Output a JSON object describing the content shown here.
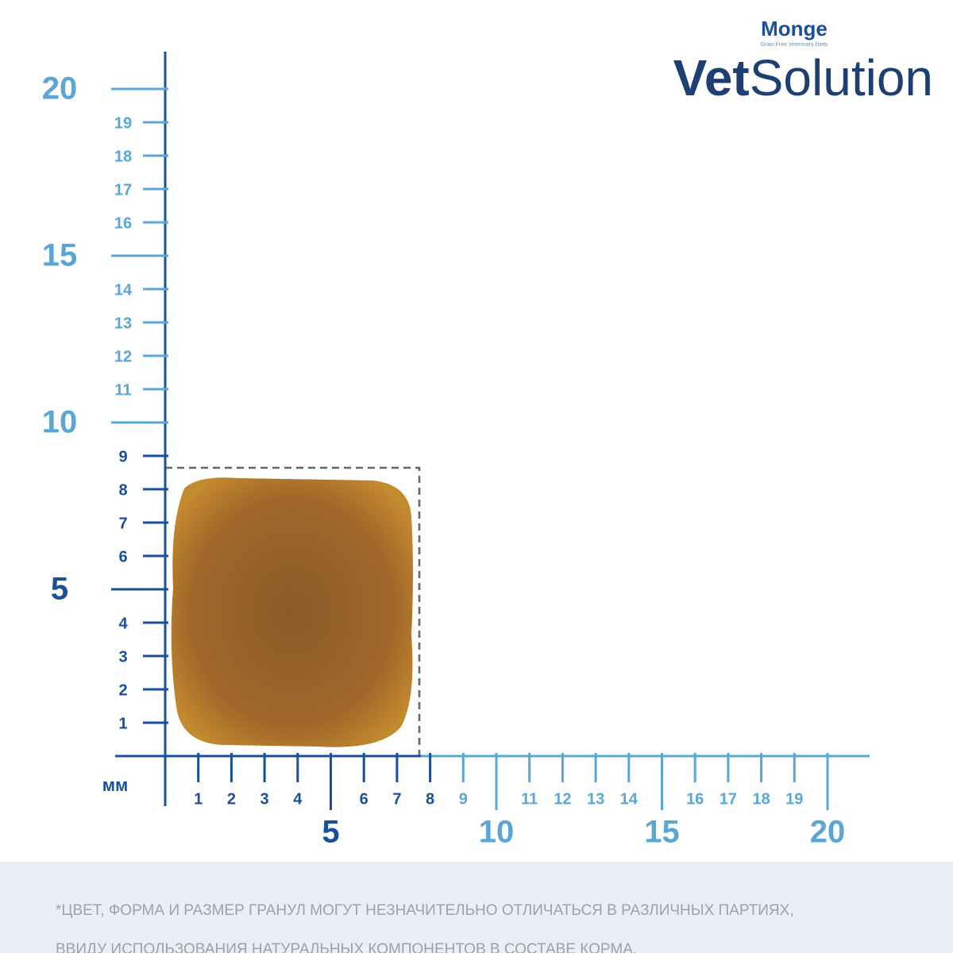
{
  "brand": {
    "maker": "Monge",
    "tagline": "Grain Free Veterinary Diets",
    "product_bold": "Vet",
    "product_light": "Solution"
  },
  "unit": "мм",
  "y_axis": {
    "minor": [
      "1",
      "2",
      "3",
      "4",
      "6",
      "7",
      "8",
      "9",
      "11",
      "12",
      "13",
      "14",
      "16",
      "17",
      "18",
      "19"
    ],
    "major": [
      "5",
      "10",
      "15",
      "20"
    ]
  },
  "x_axis": {
    "minor": [
      "1",
      "2",
      "3",
      "4",
      "6",
      "7",
      "8",
      "9",
      "11",
      "12",
      "13",
      "14",
      "16",
      "17",
      "18",
      "19"
    ],
    "major": [
      "5",
      "10",
      "15",
      "20"
    ]
  },
  "disclaimer": [
    "*ЦВЕТ, ФОРМА И РАЗМЕР ГРАНУЛ МОГУТ НЕЗНАЧИТЕЛЬНО ОТЛИЧАТЬСЯ В РАЗЛИЧНЫХ ПАРТИЯХ,",
    "ВВИДУ ИСПОЛЬЗОВАНИЯ НАТУРАЛЬНЫХ КОМПОНЕНТОВ В СОСТАВЕ КОРМА."
  ]
}
